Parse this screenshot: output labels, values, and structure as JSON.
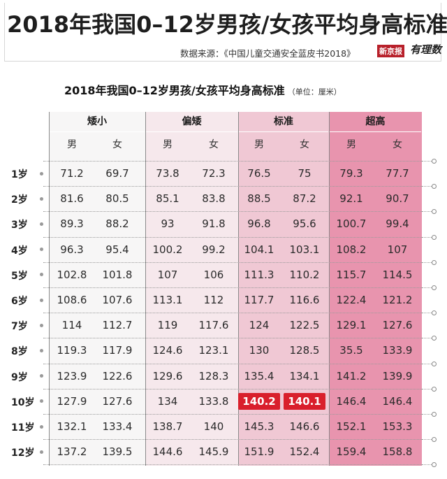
{
  "header": {
    "main_title": "2018年我国0–12岁男孩/女孩平均身高标准",
    "source": "数据来源：《中国儿童交通安全蓝皮书2018》",
    "logo_text": "新京报",
    "logo_text2": "有理数"
  },
  "table": {
    "title": "2018年我国0–12岁男孩/女孩平均身高标准",
    "unit": "（单位：厘米）",
    "categories": [
      "矮小",
      "偏矮",
      "标准",
      "超高"
    ],
    "sexes": [
      "男",
      "女"
    ],
    "rows": [
      {
        "age": "1岁",
        "values": [
          "71.2",
          "69.7",
          "73.8",
          "72.3",
          "76.5",
          "75",
          "79.3",
          "77.7"
        ]
      },
      {
        "age": "2岁",
        "values": [
          "81.6",
          "80.5",
          "85.1",
          "83.8",
          "88.5",
          "87.2",
          "92.1",
          "90.7"
        ]
      },
      {
        "age": "3岁",
        "values": [
          "89.3",
          "88.2",
          "93",
          "91.8",
          "96.8",
          "95.6",
          "100.7",
          "99.4"
        ]
      },
      {
        "age": "4岁",
        "values": [
          "96.3",
          "95.4",
          "100.2",
          "99.2",
          "104.1",
          "103.1",
          "108.2",
          "107"
        ]
      },
      {
        "age": "5岁",
        "values": [
          "102.8",
          "101.8",
          "107",
          "106",
          "111.3",
          "110.2",
          "115.7",
          "114.5"
        ]
      },
      {
        "age": "6岁",
        "values": [
          "108.6",
          "107.6",
          "113.1",
          "112",
          "117.7",
          "116.6",
          "122.4",
          "121.2"
        ]
      },
      {
        "age": "7岁",
        "values": [
          "114",
          "112.7",
          "119",
          "117.6",
          "124",
          "122.5",
          "129.1",
          "127.6"
        ]
      },
      {
        "age": "8岁",
        "values": [
          "119.3",
          "117.9",
          "124.6",
          "123.1",
          "130",
          "128.5",
          "35.5",
          "133.9"
        ]
      },
      {
        "age": "9岁",
        "values": [
          "123.9",
          "122.6",
          "129.6",
          "128.3",
          "135.4",
          "134.1",
          "141.2",
          "139.9"
        ]
      },
      {
        "age": "10岁",
        "values": [
          "127.9",
          "127.6",
          "134",
          "133.8",
          "140.2",
          "140.1",
          "146.4",
          "146.4"
        ]
      },
      {
        "age": "11岁",
        "values": [
          "132.1",
          "133.4",
          "138.7",
          "140",
          "145.3",
          "146.6",
          "152.1",
          "153.3"
        ]
      },
      {
        "age": "12岁",
        "values": [
          "137.2",
          "139.5",
          "144.6",
          "145.9",
          "151.9",
          "152.4",
          "159.4",
          "158.8"
        ]
      }
    ],
    "highlighted": [
      {
        "row": 9,
        "col": 4
      },
      {
        "row": 9,
        "col": 5
      }
    ]
  },
  "colors": {
    "band_short": "#f7f6f6",
    "band_below": "#f6e8ec",
    "band_standard": "#f0c8d4",
    "band_tall": "#e894ae",
    "highlight": "#d91f2c"
  }
}
